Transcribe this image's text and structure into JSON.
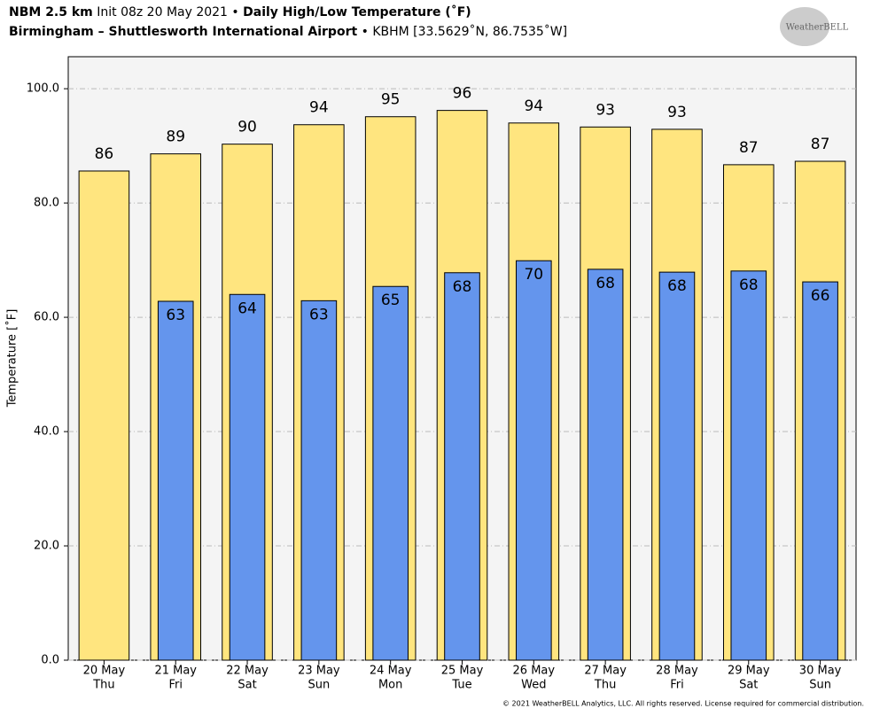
{
  "chart_data": {
    "type": "bar",
    "title": {
      "model": "NBM 2.5 km",
      "init": "Init 08z 20 May 2021 •",
      "product": "Daily High/Low Temperature (˚F)"
    },
    "subtitle": {
      "station": "Birmingham – Shuttlesworth International Airport",
      "info": "• KBHM [33.5629˚N, 86.7535˚W]"
    },
    "y_label": "Temperature [˚F]",
    "logo": "WeatherBELL",
    "footer": "© 2021 WeatherBELL Analytics, LLC. All rights reserved. License required for commercial distribution.",
    "categories": [
      [
        "20 May",
        "Thu"
      ],
      [
        "21 May",
        "Fri"
      ],
      [
        "22 May",
        "Sat"
      ],
      [
        "23 May",
        "Sun"
      ],
      [
        "24 May",
        "Mon"
      ],
      [
        "25 May",
        "Tue"
      ],
      [
        "26 May",
        "Wed"
      ],
      [
        "27 May",
        "Thu"
      ],
      [
        "28 May",
        "Fri"
      ],
      [
        "29 May",
        "Sat"
      ],
      [
        "30 May",
        "Sun"
      ]
    ],
    "series": [
      {
        "name": "High",
        "color": "#ffe57f",
        "values": [
          85.6,
          88.6,
          90.3,
          93.7,
          95.1,
          96.2,
          94.0,
          93.3,
          92.9,
          86.7,
          87.3
        ],
        "value_labels": [
          "86",
          "89",
          "90",
          "94",
          "95",
          "96",
          "94",
          "93",
          "93",
          "87",
          "87"
        ]
      },
      {
        "name": "Low",
        "color": "#6495ed",
        "values": [
          null,
          62.8,
          64.0,
          62.9,
          65.4,
          67.8,
          69.9,
          68.4,
          67.9,
          68.1,
          66.2
        ],
        "value_labels": [
          null,
          "63",
          "64",
          "63",
          "65",
          "68",
          "70",
          "68",
          "68",
          "68",
          "66"
        ]
      }
    ],
    "ylim": [
      0,
      105.6
    ],
    "yticks": [
      {
        "value": 0,
        "label": "0.0"
      },
      {
        "value": 20,
        "label": "20.0"
      },
      {
        "value": 40,
        "label": "40.0"
      },
      {
        "value": 60,
        "label": "60.0"
      },
      {
        "value": 80,
        "label": "80.0"
      },
      {
        "value": 100,
        "label": "100.0"
      }
    ],
    "grid": true
  }
}
